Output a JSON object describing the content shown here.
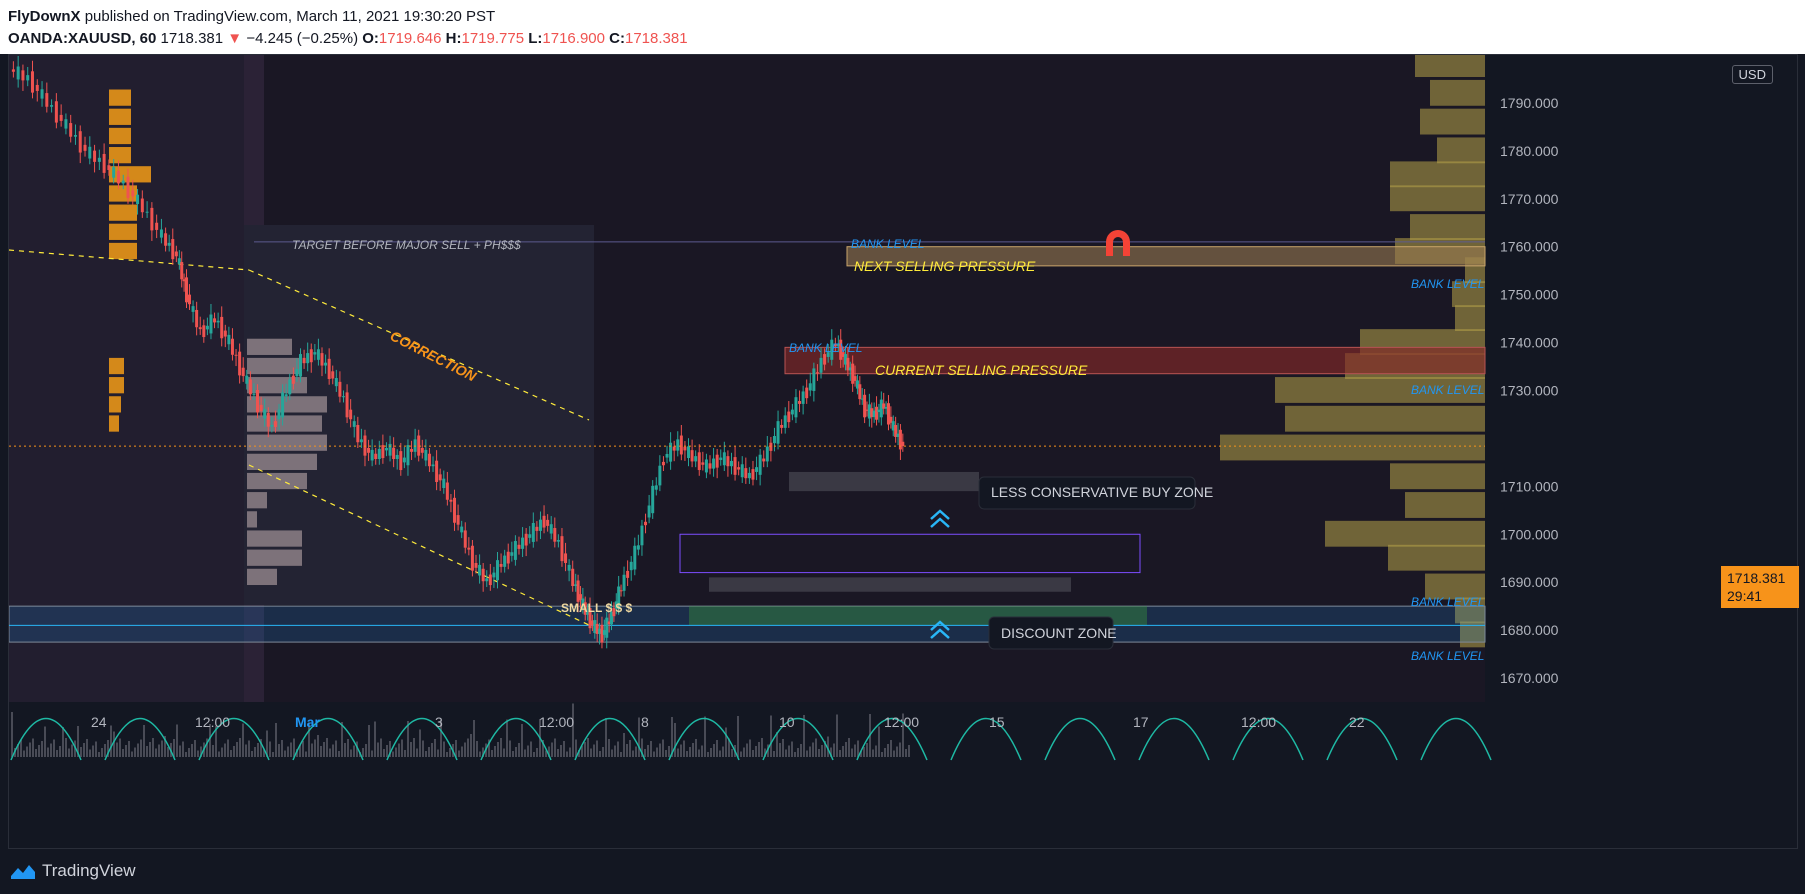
{
  "header": {
    "author": "FlyDownX",
    "published_text": "published on TradingView.com, March 11, 2021 19:30:20 PST",
    "symbol": "OANDA:XAUUSD, 60",
    "last": "1718.381",
    "change_arrow": "▼",
    "change": "−4.245 (−0.25%)",
    "o_label": "O:",
    "o_val": "1719.646",
    "h_label": "H:",
    "h_val": "1719.775",
    "l_label": "L:",
    "l_val": "1716.900",
    "c_label": "C:",
    "c_val": "1718.381"
  },
  "footer": {
    "brand": "TradingView",
    "logo_icon": "tradingview-logo-icon"
  },
  "axis": {
    "currency": "USD",
    "price_tag": "1718.381",
    "countdown": "29:41"
  },
  "chart_data": {
    "type": "candlestick",
    "symbol": "OANDA:XAUUSD",
    "interval": "60",
    "ylim": [
      1665,
      1800
    ],
    "y_ticks": [
      "1790.000",
      "1780.000",
      "1770.000",
      "1760.000",
      "1750.000",
      "1740.000",
      "1730.000",
      "1710.000",
      "1700.000",
      "1690.000",
      "1680.000",
      "1670.000"
    ],
    "y_tick_values": [
      1790,
      1780,
      1770,
      1760,
      1750,
      1740,
      1730,
      1710,
      1700,
      1690,
      1680,
      1670
    ],
    "x_ticks": [
      "24",
      "12:00",
      "Mar",
      "3",
      "12:00",
      "8",
      "10",
      "12:00",
      "15",
      "17",
      "12:00",
      "22"
    ],
    "current_price": 1718.381,
    "price_path": [
      [
        0,
        1797
      ],
      [
        8,
        1795
      ],
      [
        16,
        1790
      ],
      [
        24,
        1785
      ],
      [
        32,
        1780
      ],
      [
        40,
        1777
      ],
      [
        48,
        1773
      ],
      [
        56,
        1768
      ],
      [
        64,
        1762
      ],
      [
        70,
        1758
      ],
      [
        74,
        1750
      ],
      [
        80,
        1742
      ],
      [
        86,
        1745
      ],
      [
        92,
        1740
      ],
      [
        98,
        1733
      ],
      [
        104,
        1727
      ],
      [
        110,
        1722
      ],
      [
        116,
        1730
      ],
      [
        122,
        1736
      ],
      [
        128,
        1738
      ],
      [
        134,
        1734
      ],
      [
        140,
        1728
      ],
      [
        146,
        1720
      ],
      [
        152,
        1716
      ],
      [
        158,
        1718
      ],
      [
        164,
        1715
      ],
      [
        170,
        1719
      ],
      [
        176,
        1715
      ],
      [
        182,
        1710
      ],
      [
        188,
        1702
      ],
      [
        194,
        1694
      ],
      [
        200,
        1690
      ],
      [
        206,
        1694
      ],
      [
        212,
        1697
      ],
      [
        218,
        1700
      ],
      [
        224,
        1703
      ],
      [
        230,
        1698
      ],
      [
        236,
        1690
      ],
      [
        240,
        1685
      ],
      [
        244,
        1681
      ],
      [
        248,
        1679
      ],
      [
        252,
        1683
      ],
      [
        256,
        1689
      ],
      [
        262,
        1696
      ],
      [
        268,
        1706
      ],
      [
        274,
        1716
      ],
      [
        280,
        1719
      ],
      [
        286,
        1716
      ],
      [
        292,
        1714
      ],
      [
        298,
        1716
      ],
      [
        304,
        1714
      ],
      [
        310,
        1712
      ],
      [
        316,
        1716
      ],
      [
        322,
        1722
      ],
      [
        328,
        1726
      ],
      [
        334,
        1730
      ],
      [
        340,
        1736
      ],
      [
        346,
        1740
      ],
      [
        350,
        1736
      ],
      [
        354,
        1732
      ],
      [
        358,
        1726
      ],
      [
        362,
        1725
      ],
      [
        366,
        1727
      ],
      [
        370,
        1722
      ],
      [
        374,
        1718.4
      ]
    ],
    "annotations": [
      {
        "text": "TARGET BEFORE MAJOR SELL + PH$$$"
      },
      {
        "text": "CORRECTION"
      },
      {
        "text": "BANK LEVEL",
        "price": 1761
      },
      {
        "text": "NEXT SELLING PRESSURE",
        "from": 1756,
        "to": 1760
      },
      {
        "text": "BANK LEVEL",
        "price": 1740
      },
      {
        "text": "CURRENT SELLING PRESSURE",
        "from": 1734,
        "to": 1739
      },
      {
        "text": "BANK LEVEL",
        "price": 1752
      },
      {
        "text": "BANK LEVEL",
        "price": 1729
      },
      {
        "text": "LESS CONSERVATIVE BUY ZONE",
        "from": 1709,
        "to": 1713
      },
      {
        "text": "SMALL $ $ $"
      },
      {
        "text": "DISCOUNT ZONE",
        "from": 1681,
        "to": 1685
      },
      {
        "text": "BANK LEVEL",
        "price": 1686
      },
      {
        "text": "BANK LEVEL",
        "price": 1674
      }
    ],
    "grid": false
  },
  "colors": {
    "background": "#131722",
    "up": "#26a69a",
    "down": "#ef5350",
    "accent_orange": "#f7931a",
    "bank_level_blue": "#2196f3",
    "annotation_yellow": "#ffeb3b",
    "teal_cycles": "#1eb9a4"
  },
  "icons": {
    "magnet": "magnet-icon",
    "chevrons": "double-chevron-up-icon"
  }
}
